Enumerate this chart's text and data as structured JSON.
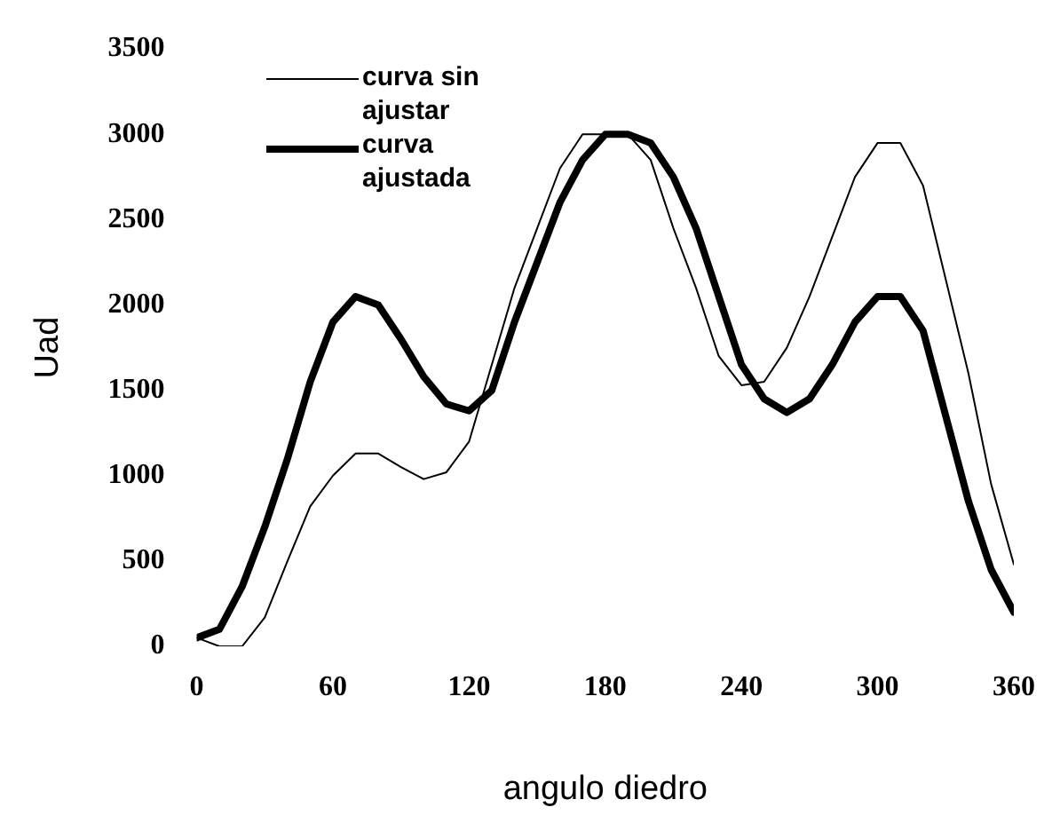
{
  "chart_data": {
    "type": "line",
    "xlabel": "angulo diedro",
    "ylabel": "Uad",
    "x": [
      0,
      10,
      20,
      30,
      40,
      50,
      60,
      70,
      80,
      90,
      100,
      110,
      120,
      130,
      140,
      150,
      160,
      170,
      180,
      190,
      200,
      210,
      220,
      230,
      240,
      250,
      260,
      270,
      280,
      290,
      300,
      310,
      320,
      330,
      340,
      350,
      360
    ],
    "xlim": [
      0,
      360
    ],
    "xticks": [
      0,
      60,
      120,
      180,
      240,
      300,
      360
    ],
    "ylim": [
      0,
      3500
    ],
    "yticks": [
      0,
      500,
      1000,
      1500,
      2000,
      2500,
      3000,
      3500
    ],
    "grid": false,
    "legend": "top left",
    "marker": "none",
    "line_style": "solid",
    "series": [
      {
        "name": "curva sin ajustar",
        "color": "#000000",
        "values": [
          50,
          0,
          0,
          170,
          500,
          820,
          1000,
          1130,
          1130,
          1050,
          980,
          1020,
          1200,
          1650,
          2100,
          2450,
          2800,
          3000,
          3000,
          3000,
          2850,
          2450,
          2100,
          1700,
          1530,
          1550,
          1750,
          2050,
          2400,
          2750,
          2950,
          2950,
          2700,
          2150,
          1600,
          950,
          480
        ]
      },
      {
        "name": "curva ajustada",
        "color": "#000000",
        "values": [
          50,
          100,
          350,
          700,
          1100,
          1550,
          1900,
          2050,
          2000,
          1800,
          1580,
          1420,
          1380,
          1500,
          1900,
          2250,
          2600,
          2850,
          3000,
          3000,
          2950,
          2750,
          2450,
          2050,
          1650,
          1450,
          1370,
          1450,
          1650,
          1900,
          2050,
          2050,
          1850,
          1350,
          850,
          450,
          200
        ]
      }
    ]
  }
}
